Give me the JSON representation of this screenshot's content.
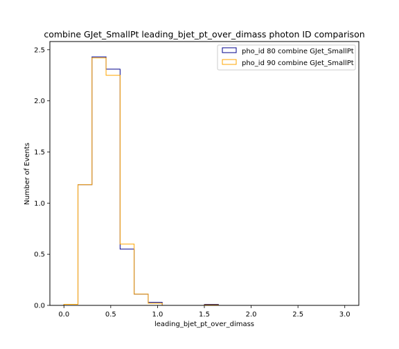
{
  "chart_data": {
    "type": "step-histogram",
    "title": "combine GJet_SmallPt leading_bjet_pt_over_dimass photon ID comparison",
    "xlabel": "leading_bjet_pt_over_dimass",
    "ylabel": "Number of Events",
    "xlim": [
      -0.15,
      3.15
    ],
    "ylim": [
      0,
      2.58
    ],
    "x_ticks": [
      0.0,
      0.5,
      1.0,
      1.5,
      2.0,
      2.5,
      3.0
    ],
    "x_tick_labels": [
      "0.0",
      "0.5",
      "1.0",
      "1.5",
      "2.0",
      "2.5",
      "3.0"
    ],
    "y_ticks": [
      0.0,
      0.5,
      1.0,
      1.5,
      2.0,
      2.5
    ],
    "y_tick_labels": [
      "0.0",
      "0.5",
      "1.0",
      "1.5",
      "2.0",
      "2.5"
    ],
    "legend_position": "top-right",
    "grid": false,
    "bin_edges": [
      0.0,
      0.15,
      0.3,
      0.45,
      0.6,
      0.75,
      0.9,
      1.05,
      1.2,
      1.35,
      1.5,
      1.65,
      1.8,
      1.95,
      2.1,
      2.25,
      2.4,
      2.55,
      2.7,
      2.85,
      3.0
    ],
    "series": [
      {
        "name": "pho_id 80 combine GJet_SmallPt",
        "color": "#00008b",
        "values": [
          0.01,
          1.18,
          2.43,
          2.31,
          0.55,
          0.11,
          0.03,
          0.0,
          0.0,
          0.0,
          0.01,
          0.0,
          0.0,
          0.0,
          0.0,
          0.0,
          0.0,
          0.0,
          0.0,
          0.0
        ]
      },
      {
        "name": "pho_id 90 combine GJet_SmallPt",
        "color": "#ffa500",
        "values": [
          0.01,
          1.18,
          2.42,
          2.25,
          0.6,
          0.11,
          0.02,
          0.0,
          0.0,
          0.0,
          0.005,
          0.0,
          0.0,
          0.0,
          0.0,
          0.0,
          0.0,
          0.0,
          0.0,
          0.0
        ]
      }
    ]
  }
}
